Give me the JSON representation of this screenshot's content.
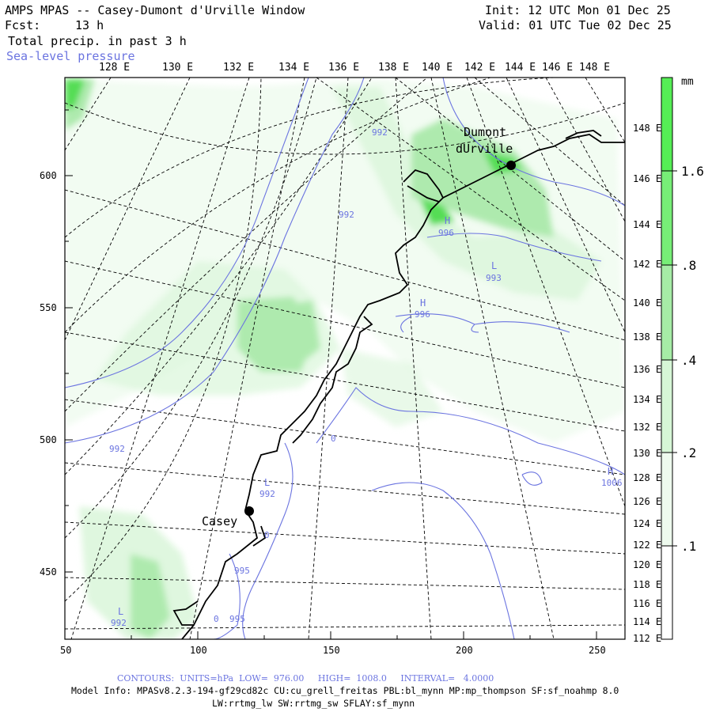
{
  "header": {
    "title": "AMPS MPAS -- Casey-Dumont d'Urville Window",
    "fcst_label": "Fcst:",
    "fcst_value": "13 h",
    "init": "Init: 12 UTC Mon 01 Dec 25",
    "valid": "Valid: 01 UTC Tue 02 Dec 25",
    "field1": "Total precip. in past 3 h",
    "field2": "Sea-level pressure"
  },
  "map": {
    "top_lon_labels": [
      "128 E",
      "130 E",
      "132 E",
      "134 E",
      "136 E",
      "138 E",
      "140 E",
      "142 E",
      "144 E",
      "146 E",
      "148 E"
    ],
    "right_lon_labels": [
      "148 E",
      "146 E",
      "144 E",
      "142 E",
      "140 E",
      "138 E",
      "136 E",
      "134 E",
      "132 E",
      "130 E",
      "128 E",
      "126 E",
      "124 E",
      "122 E",
      "120 E",
      "118 E",
      "116 E",
      "114 E",
      "112 E"
    ],
    "left_y_labels": [
      "600",
      "550",
      "500",
      "450"
    ],
    "bottom_x_labels": [
      "50",
      "100",
      "150",
      "200",
      "250"
    ],
    "stations": [
      {
        "name": "Casey"
      },
      {
        "name1": "Dumont",
        "name2": "dUrville"
      }
    ],
    "pressure_labels": [
      "992",
      "992",
      "992",
      "992",
      "992",
      "995",
      "995",
      "996",
      "996",
      "993",
      "1006"
    ],
    "hl_labels": [
      "H",
      "H",
      "L",
      "L",
      "L",
      "H"
    ],
    "zero_marks": [
      "0",
      "0",
      "0"
    ],
    "colors": {
      "contour": "#6b74e0",
      "precip_light": "#dff7df",
      "precip_mid": "#aeeaae",
      "precip_strong": "#55dd55",
      "coast": "#000000",
      "grid": "#000000"
    }
  },
  "colorbar": {
    "units": "mm",
    "labels": [
      "1.6",
      ".8",
      ".4",
      ".2",
      ".1"
    ]
  },
  "footer": {
    "contours": "CONTOURS:  UNITS=hPa  LOW=  976.00     HIGH=  1008.0     INTERVAL=   4.0000",
    "model_info": "Model Info: MPASv8.2.3-194-gf29cd82c CU:cu_grell_freitas PBL:bl_mynn MP:mp_thompson SF:sf_noahmp 8.0",
    "model_info2": "LW:rrtmg_lw SW:rrtmg_sw SFLAY:sf_mynn"
  }
}
